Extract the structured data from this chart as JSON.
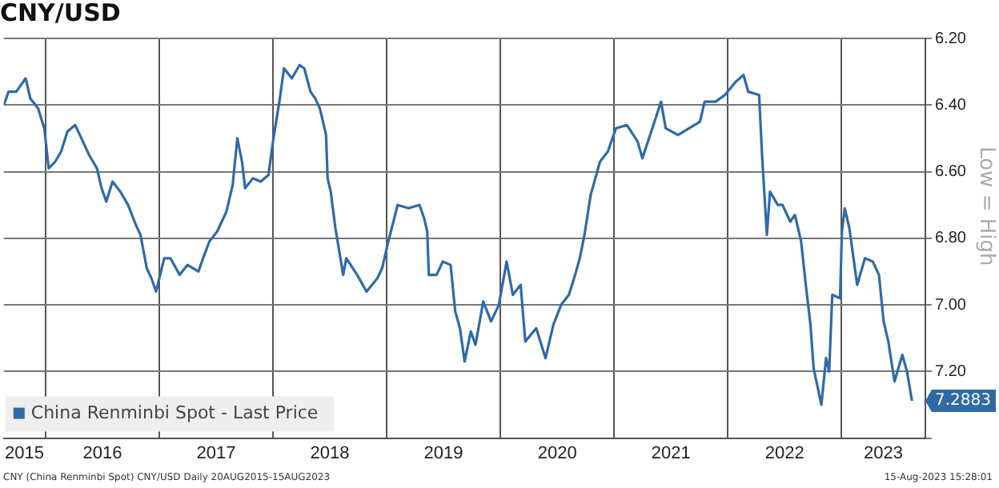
{
  "chart_data": {
    "type": "line",
    "title": "CNY/USD",
    "ylabel": "Low = High",
    "x": [
      "2015-08-20",
      "2015-09-04",
      "2015-09-29",
      "2015-10-29",
      "2015-11-13",
      "2015-12-08",
      "2015-12-28",
      "2016-01-11",
      "2016-02-01",
      "2016-02-20",
      "2016-03-11",
      "2016-04-05",
      "2016-04-25",
      "2016-05-20",
      "2016-06-14",
      "2016-06-29",
      "2016-07-14",
      "2016-08-03",
      "2016-08-28",
      "2016-09-22",
      "2016-10-17",
      "2016-11-01",
      "2016-11-21",
      "2016-12-06",
      "2016-12-21",
      "2017-01-16",
      "2017-02-05",
      "2017-03-07",
      "2017-04-01",
      "2017-05-06",
      "2017-05-21",
      "2017-06-10",
      "2017-07-05",
      "2017-08-04",
      "2017-08-24",
      "2017-09-08",
      "2017-09-23",
      "2017-10-03",
      "2017-10-28",
      "2017-11-22",
      "2017-12-17",
      "2018-01-02",
      "2018-01-21",
      "2018-02-05",
      "2018-03-02",
      "2018-03-27",
      "2018-04-11",
      "2018-05-01",
      "2018-05-16",
      "2018-05-31",
      "2018-06-20",
      "2018-06-25",
      "2018-07-05",
      "2018-07-20",
      "2018-08-14",
      "2018-08-24",
      "2018-09-28",
      "2018-10-28",
      "2018-12-02",
      "2018-12-17",
      "2019-01-06",
      "2019-02-05",
      "2019-03-12",
      "2019-04-16",
      "2019-05-01",
      "2019-05-11",
      "2019-05-16",
      "2019-06-10",
      "2019-06-30",
      "2019-07-25",
      "2019-08-09",
      "2019-08-24",
      "2019-09-08",
      "2019-09-28",
      "2019-10-13",
      "2019-11-07",
      "2019-12-02",
      "2019-12-27",
      "2020-01-21",
      "2020-02-10",
      "2020-03-06",
      "2020-03-21",
      "2020-04-25",
      "2020-05-25",
      "2020-06-19",
      "2020-07-14",
      "2020-08-08",
      "2020-08-28",
      "2020-09-12",
      "2020-09-27",
      "2020-10-17",
      "2020-11-01",
      "2020-11-16",
      "2020-12-11",
      "2021-01-06",
      "2021-02-10",
      "2021-03-17",
      "2021-04-01",
      "2021-04-26",
      "2021-05-31",
      "2021-06-15",
      "2021-07-25",
      "2021-08-29",
      "2021-10-03",
      "2021-10-18",
      "2021-11-22",
      "2021-12-22",
      "2022-01-26",
      "2022-02-20",
      "2022-03-07",
      "2022-04-11",
      "2022-04-21",
      "2022-05-06",
      "2022-05-16",
      "2022-06-10",
      "2022-06-25",
      "2022-07-20",
      "2022-08-04",
      "2022-08-24",
      "2022-09-08",
      "2022-09-23",
      "2022-10-03",
      "2022-10-28",
      "2022-11-12",
      "2022-11-22",
      "2022-12-02",
      "2022-12-27",
      "2023-01-02",
      "2023-01-11",
      "2023-01-26",
      "2023-02-20",
      "2023-03-17",
      "2023-04-11",
      "2023-05-01",
      "2023-05-16",
      "2023-05-31",
      "2023-06-20",
      "2023-07-15",
      "2023-07-30",
      "2023-08-15"
    ],
    "series": [
      {
        "name": "China Renminbi Spot - Last Price",
        "color": "#2f6aa8",
        "values": [
          6.4,
          6.36,
          6.36,
          6.32,
          6.38,
          6.41,
          6.47,
          6.59,
          6.57,
          6.54,
          6.48,
          6.46,
          6.5,
          6.55,
          6.59,
          6.65,
          6.69,
          6.63,
          6.66,
          6.7,
          6.76,
          6.79,
          6.89,
          6.92,
          6.96,
          6.86,
          6.86,
          6.91,
          6.88,
          6.9,
          6.86,
          6.81,
          6.78,
          6.72,
          6.64,
          6.5,
          6.57,
          6.65,
          6.62,
          6.63,
          6.61,
          6.5,
          6.39,
          6.29,
          6.32,
          6.28,
          6.29,
          6.36,
          6.38,
          6.41,
          6.49,
          6.62,
          6.66,
          6.77,
          6.91,
          6.86,
          6.91,
          6.96,
          6.92,
          6.89,
          6.81,
          6.7,
          6.71,
          6.7,
          6.74,
          6.78,
          6.91,
          6.91,
          6.87,
          6.88,
          7.02,
          7.07,
          7.17,
          7.08,
          7.12,
          6.99,
          7.05,
          7.0,
          6.87,
          6.97,
          6.94,
          7.11,
          7.07,
          7.16,
          7.06,
          7.0,
          6.97,
          6.91,
          6.86,
          6.79,
          6.67,
          6.62,
          6.57,
          6.54,
          6.47,
          6.46,
          6.51,
          6.56,
          6.49,
          6.39,
          6.47,
          6.49,
          6.47,
          6.45,
          6.39,
          6.39,
          6.37,
          6.33,
          6.31,
          6.36,
          6.37,
          6.56,
          6.79,
          6.66,
          6.7,
          6.7,
          6.75,
          6.73,
          6.81,
          6.94,
          7.06,
          7.19,
          7.3,
          7.16,
          7.2,
          6.97,
          6.98,
          6.78,
          6.71,
          6.77,
          6.94,
          6.86,
          6.87,
          6.91,
          7.05,
          7.11,
          7.23,
          7.15,
          7.2,
          7.2883
        ]
      }
    ],
    "xlim": [
      "2015-08-20",
      "2023-09-27"
    ],
    "xticks": [
      {
        "value": "2015-10-25",
        "label": "2015"
      },
      {
        "value": "2016-01-01",
        "label": null
      },
      {
        "value": "2016-07-02",
        "label": "2016"
      },
      {
        "value": "2017-01-01",
        "label": null
      },
      {
        "value": "2017-07-02",
        "label": "2017"
      },
      {
        "value": "2018-01-01",
        "label": null
      },
      {
        "value": "2018-07-02",
        "label": "2018"
      },
      {
        "value": "2019-01-01",
        "label": null
      },
      {
        "value": "2019-07-02",
        "label": "2019"
      },
      {
        "value": "2020-01-01",
        "label": null
      },
      {
        "value": "2020-07-02",
        "label": "2020"
      },
      {
        "value": "2021-01-01",
        "label": null
      },
      {
        "value": "2021-07-02",
        "label": "2021"
      },
      {
        "value": "2022-01-01",
        "label": null
      },
      {
        "value": "2022-07-02",
        "label": "2022"
      },
      {
        "value": "2023-01-01",
        "label": null
      },
      {
        "value": "2023-05-15",
        "label": "2023"
      }
    ],
    "ylim": [
      7.4,
      6.2
    ],
    "yticks": [
      {
        "value": 6.2,
        "label": "6.20"
      },
      {
        "value": 6.4,
        "label": "6.40"
      },
      {
        "value": 6.6,
        "label": "6.60"
      },
      {
        "value": 6.8,
        "label": "6.80"
      },
      {
        "value": 7.0,
        "label": "7.00"
      },
      {
        "value": 7.2,
        "label": "7.20"
      },
      {
        "value": 7.4,
        "label": null
      }
    ],
    "grid": true,
    "legend": "bottom left",
    "marker": "none",
    "line_style": "solid",
    "annotations": [
      {
        "text": "7.2883",
        "x": "2023-08-15",
        "y": 7.2883
      },
      "CNY (China Renminbi Spot) CNY/USD  Daily 20AUG2015-15AUG2023",
      "15-Aug-2023 15:28:01"
    ]
  }
}
